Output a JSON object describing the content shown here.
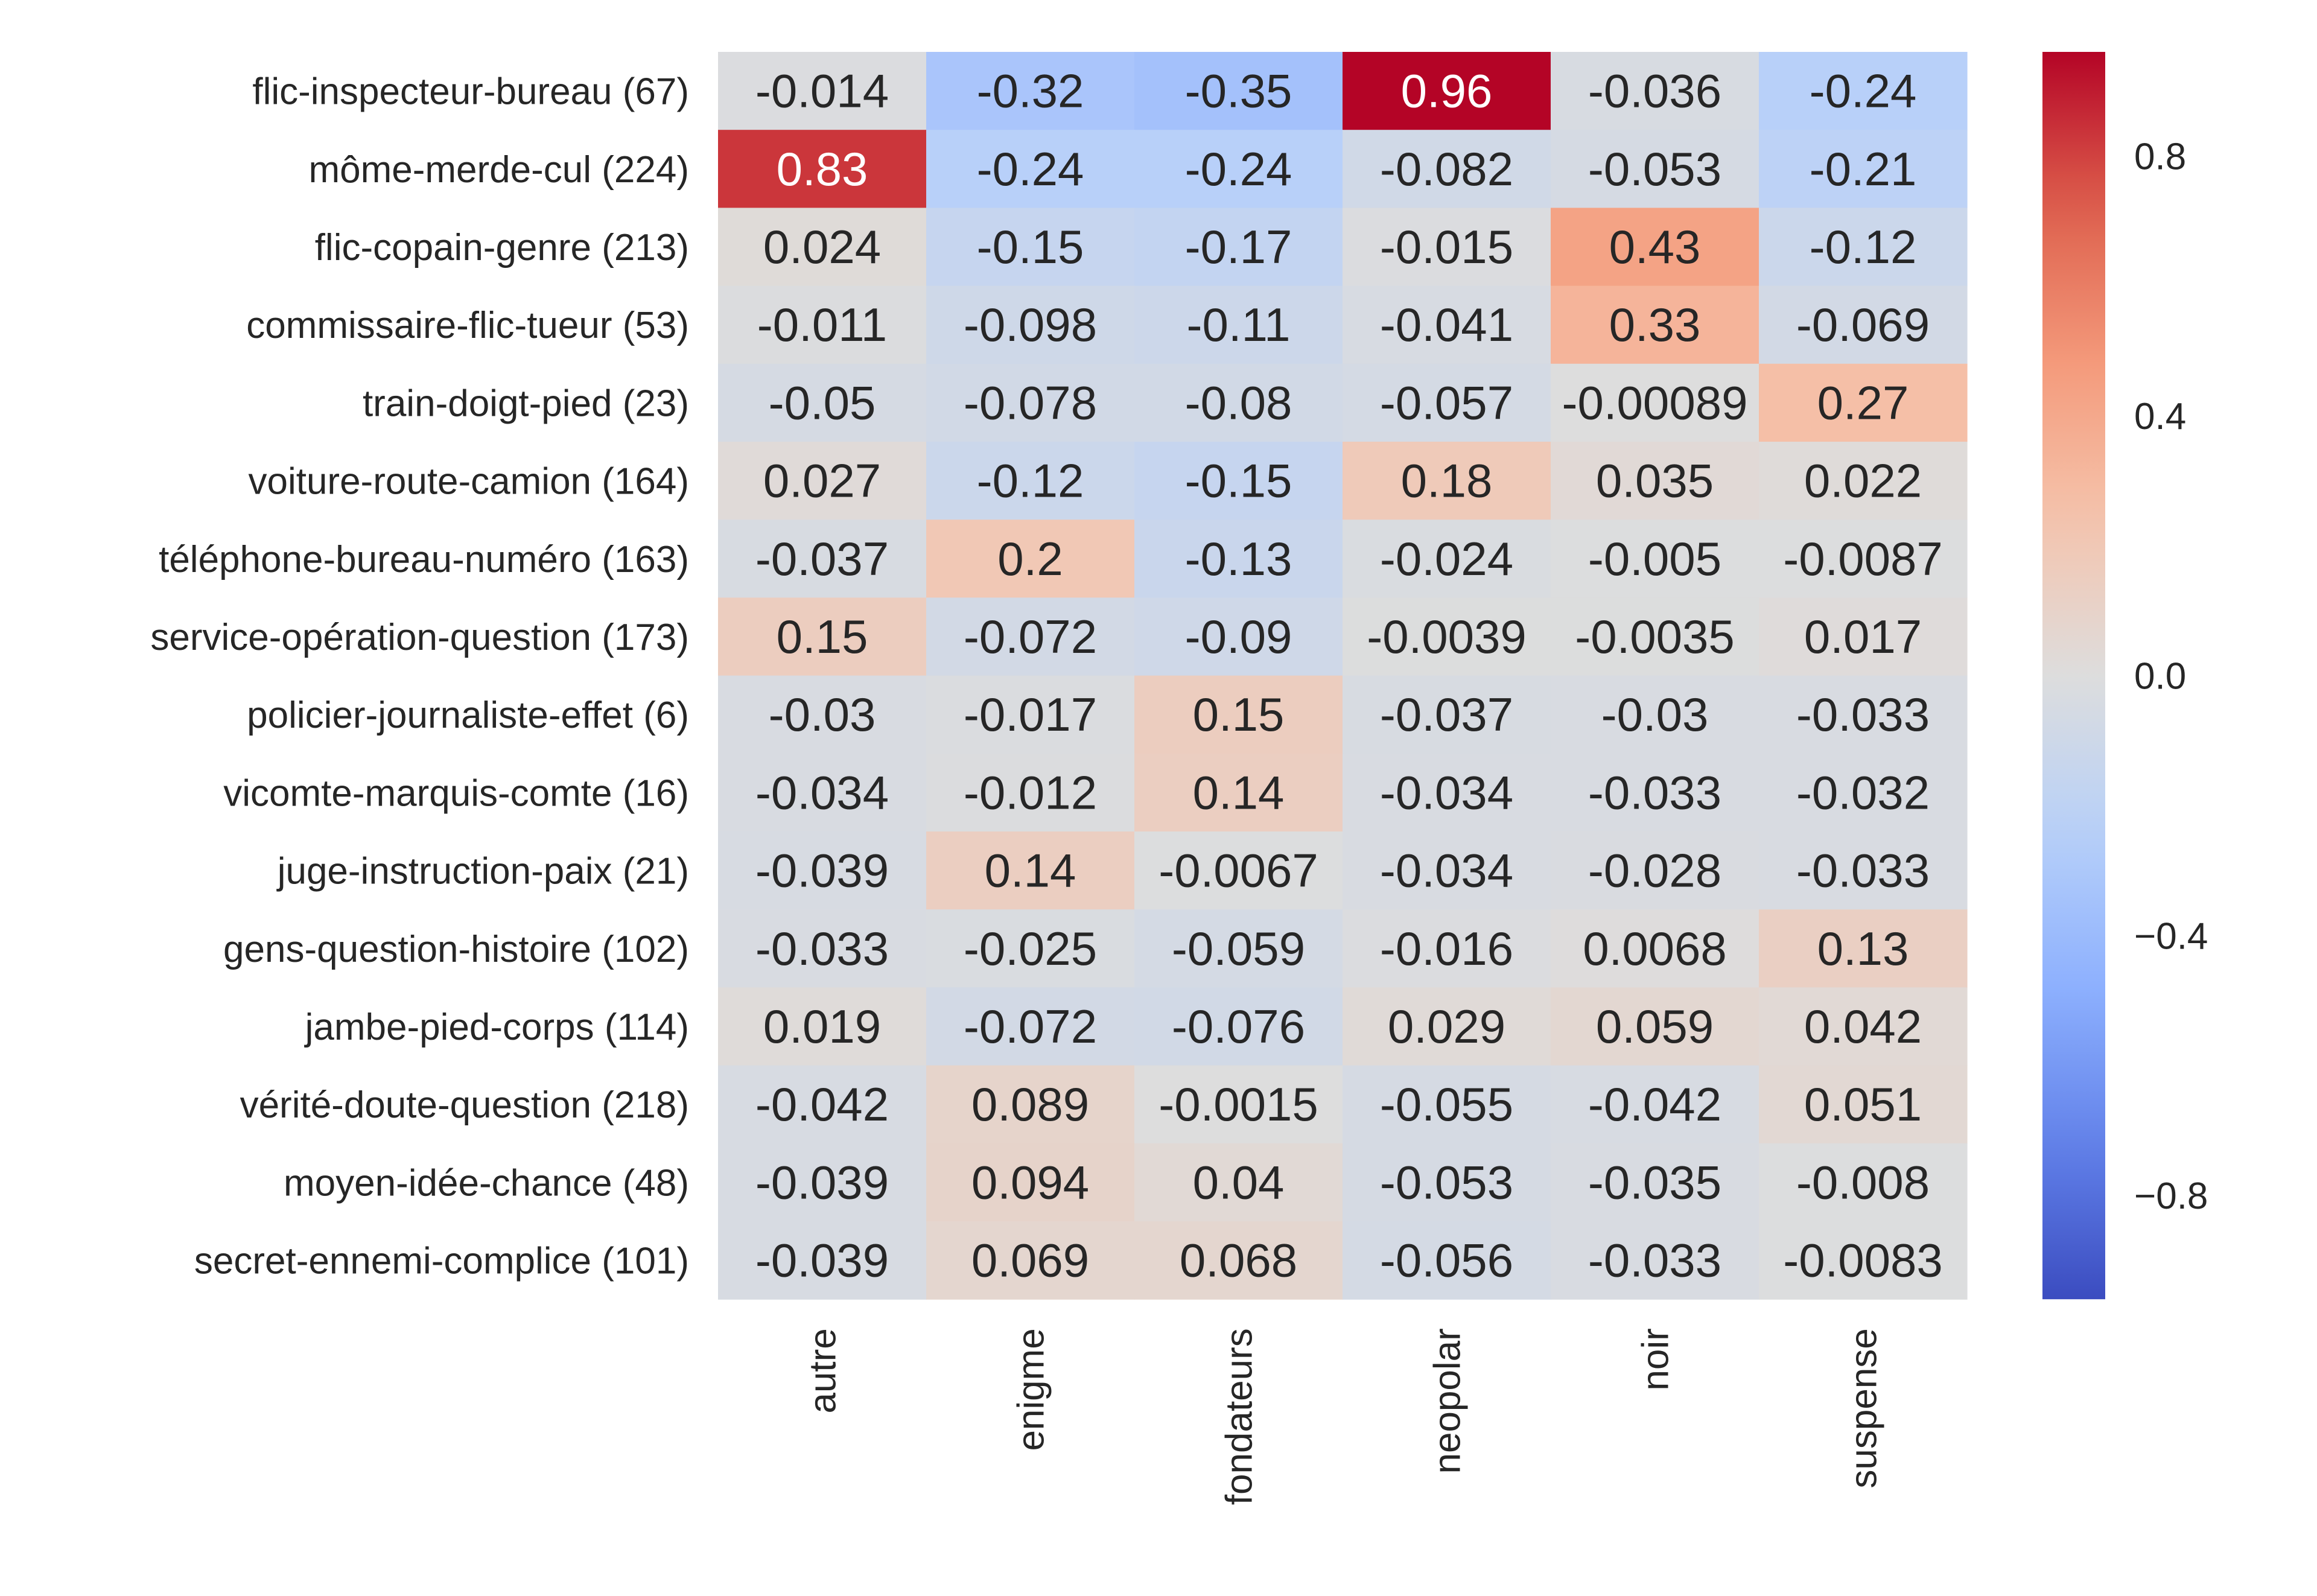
{
  "chart_data": {
    "type": "heatmap",
    "title": "",
    "xlabel": "",
    "ylabel": "",
    "columns": [
      "autre",
      "enigme",
      "fondateurs",
      "neopolar",
      "noir",
      "suspense"
    ],
    "rows": [
      "flic-inspecteur-bureau (67)",
      "môme-merde-cul (224)",
      "flic-copain-genre (213)",
      "commissaire-flic-tueur (53)",
      "train-doigt-pied (23)",
      "voiture-route-camion (164)",
      "téléphone-bureau-numéro (163)",
      "service-opération-question (173)",
      "policier-journaliste-effet (6)",
      "vicomte-marquis-comte (16)",
      "juge-instruction-paix (21)",
      "gens-question-histoire (102)",
      "jambe-pied-corps (114)",
      "vérité-doute-question (218)",
      "moyen-idée-chance (48)",
      "secret-ennemi-complice (101)"
    ],
    "values": [
      [
        -0.014,
        -0.32,
        -0.35,
        0.96,
        -0.036,
        -0.24
      ],
      [
        0.83,
        -0.24,
        -0.24,
        -0.082,
        -0.053,
        -0.21
      ],
      [
        0.024,
        -0.15,
        -0.17,
        -0.015,
        0.43,
        -0.12
      ],
      [
        -0.011,
        -0.098,
        -0.11,
        -0.041,
        0.33,
        -0.069
      ],
      [
        -0.05,
        -0.078,
        -0.08,
        -0.057,
        -0.00089,
        0.27
      ],
      [
        0.027,
        -0.12,
        -0.15,
        0.18,
        0.035,
        0.022
      ],
      [
        -0.037,
        0.2,
        -0.13,
        -0.024,
        -0.005,
        -0.0087
      ],
      [
        0.15,
        -0.072,
        -0.09,
        -0.0039,
        -0.0035,
        0.017
      ],
      [
        -0.03,
        -0.017,
        0.15,
        -0.037,
        -0.03,
        -0.033
      ],
      [
        -0.034,
        -0.012,
        0.14,
        -0.034,
        -0.033,
        -0.032
      ],
      [
        -0.039,
        0.14,
        -0.0067,
        -0.034,
        -0.028,
        -0.033
      ],
      [
        -0.033,
        -0.025,
        -0.059,
        -0.016,
        0.0068,
        0.13
      ],
      [
        0.019,
        -0.072,
        -0.076,
        0.029,
        0.059,
        0.042
      ],
      [
        -0.042,
        0.089,
        -0.0015,
        -0.055,
        -0.042,
        0.051
      ],
      [
        -0.039,
        0.094,
        0.04,
        -0.053,
        -0.035,
        -0.008
      ],
      [
        -0.039,
        0.069,
        0.068,
        -0.056,
        -0.033,
        -0.0083
      ]
    ],
    "labels": [
      [
        "-0.014",
        "-0.32",
        "-0.35",
        "0.96",
        "-0.036",
        "-0.24"
      ],
      [
        "0.83",
        "-0.24",
        "-0.24",
        "-0.082",
        "-0.053",
        "-0.21"
      ],
      [
        "0.024",
        "-0.15",
        "-0.17",
        "-0.015",
        "0.43",
        "-0.12"
      ],
      [
        "-0.011",
        "-0.098",
        "-0.11",
        "-0.041",
        "0.33",
        "-0.069"
      ],
      [
        "-0.05",
        "-0.078",
        "-0.08",
        "-0.057",
        "-0.00089",
        "0.27"
      ],
      [
        "0.027",
        "-0.12",
        "-0.15",
        "0.18",
        "0.035",
        "0.022"
      ],
      [
        "-0.037",
        "0.2",
        "-0.13",
        "-0.024",
        "-0.005",
        "-0.0087"
      ],
      [
        "0.15",
        "-0.072",
        "-0.09",
        "-0.0039",
        "-0.0035",
        "0.017"
      ],
      [
        "-0.03",
        "-0.017",
        "0.15",
        "-0.037",
        "-0.03",
        "-0.033"
      ],
      [
        "-0.034",
        "-0.012",
        "0.14",
        "-0.034",
        "-0.033",
        "-0.032"
      ],
      [
        "-0.039",
        "0.14",
        "-0.0067",
        "-0.034",
        "-0.028",
        "-0.033"
      ],
      [
        "-0.033",
        "-0.025",
        "-0.059",
        "-0.016",
        "0.0068",
        "0.13"
      ],
      [
        "0.019",
        "-0.072",
        "-0.076",
        "0.029",
        "0.059",
        "0.042"
      ],
      [
        "-0.042",
        "0.089",
        "-0.0015",
        "-0.055",
        "-0.042",
        "0.051"
      ],
      [
        "-0.039",
        "0.094",
        "0.04",
        "-0.053",
        "-0.035",
        "-0.008"
      ],
      [
        "-0.039",
        "0.069",
        "0.068",
        "-0.056",
        "-0.033",
        "-0.0083"
      ]
    ],
    "colormap": "coolwarm",
    "vmin": -0.96,
    "vmax": 0.96,
    "colorbar": {
      "ticks": [
        0.8,
        0.4,
        0.0,
        -0.4,
        -0.8
      ],
      "tick_labels": [
        "0.8",
        "0.4",
        "0.0",
        "−0.4",
        "−0.8"
      ],
      "placement": "right"
    },
    "grid": false
  }
}
